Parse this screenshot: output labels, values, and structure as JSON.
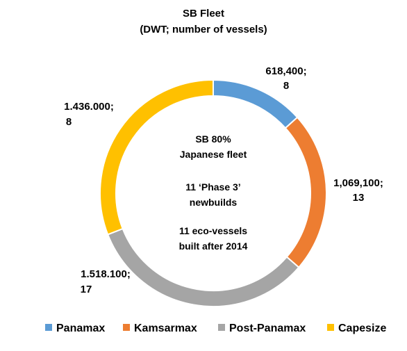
{
  "chart_data": {
    "type": "pie",
    "variant": "donut",
    "title": "SB Fleet",
    "subtitle": "(DWT; number of vessels)",
    "center_text": [
      "SB 80%",
      "Japanese fleet",
      "11 ‘Phase 3’",
      "newbuilds",
      "11 eco-vessels",
      "built after 2014"
    ],
    "slices": [
      {
        "name": "Panamax",
        "dwt": 618400,
        "vessels": 8,
        "label_line1": "618,400;",
        "label_line2": "8",
        "color": "#5B9BD5"
      },
      {
        "name": "Kamsarmax",
        "dwt": 1069100,
        "vessels": 13,
        "label_line1": "1,069,100;",
        "label_line2": "13",
        "color": "#ED7D31"
      },
      {
        "name": "Post-Panamax",
        "dwt": 1518100,
        "vessels": 17,
        "label_line1": "1.518.100;",
        "label_line2": "17",
        "color": "#A5A5A5"
      },
      {
        "name": "Capesize",
        "dwt": 1436000,
        "vessels": 8,
        "label_line1": "1.436.000;",
        "label_line2": "8",
        "color": "#FFC000"
      }
    ],
    "legend": {
      "position": "bottom"
    }
  }
}
